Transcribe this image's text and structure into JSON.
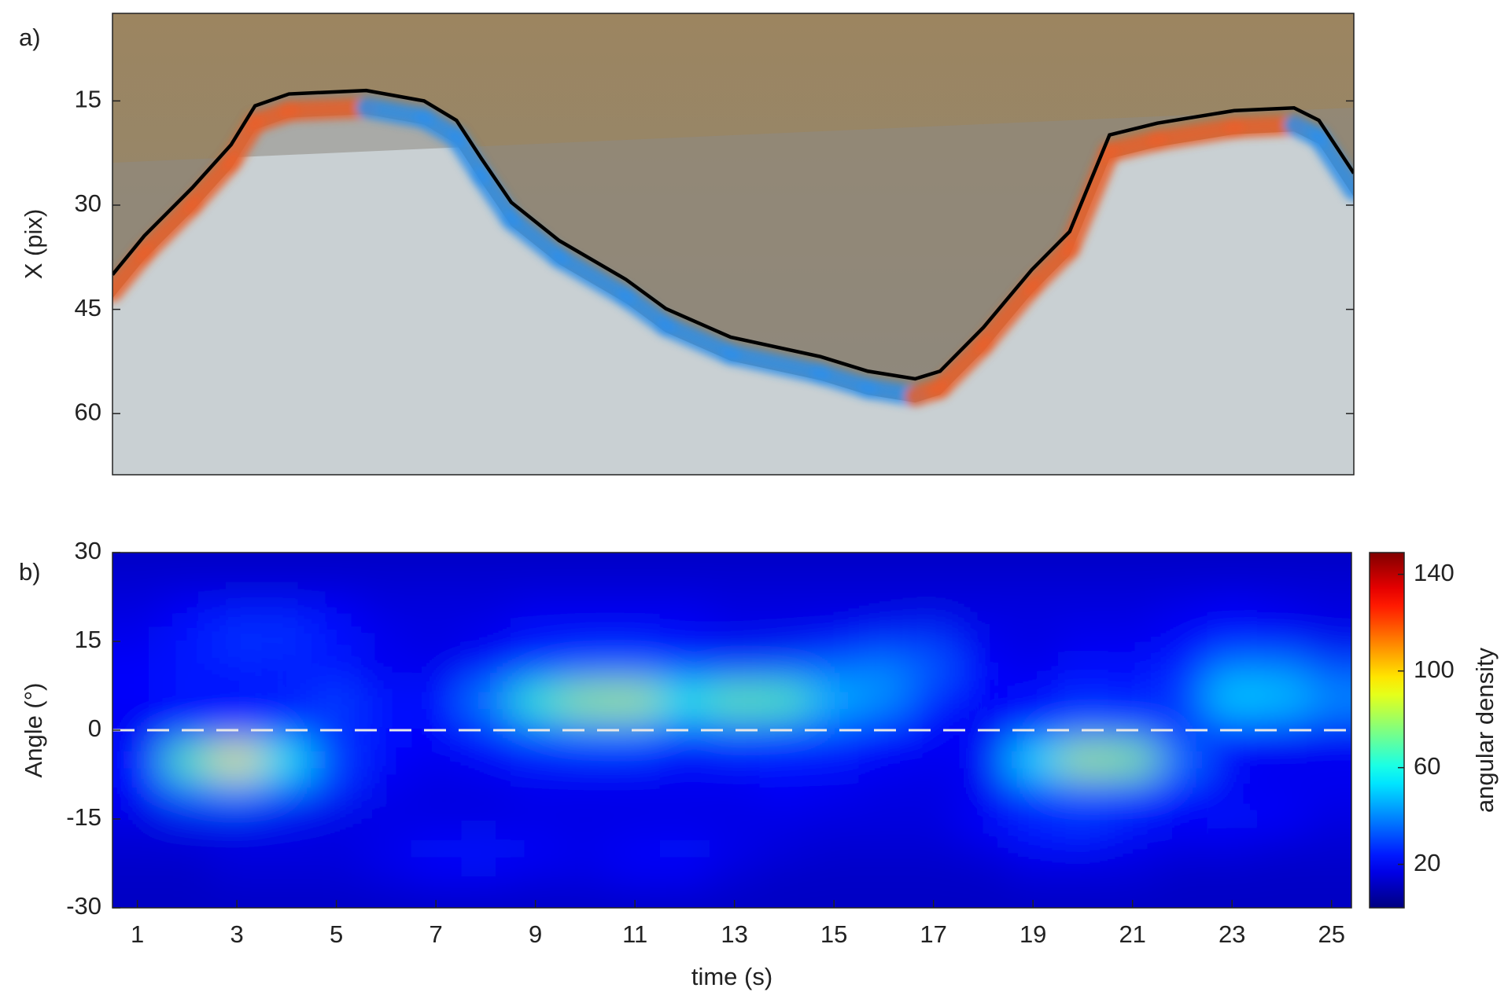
{
  "chart_data": [
    {
      "type": "line",
      "label": "a)",
      "ylabel": "X (pix)",
      "xlim": [
        0.5,
        25.4
      ],
      "ylim": [
        2.4,
        68.8
      ],
      "y_inverted": true,
      "yticks": [
        15,
        30,
        45,
        60
      ],
      "series": [
        {
          "color": "#000000",
          "x": [
            0.5,
            1.14,
            2.1,
            2.88,
            3.36,
            4.04,
            5.59,
            6.75,
            7.4,
            7.9,
            8.5,
            9.46,
            10.8,
            11.6,
            12.9,
            14.7,
            15.65,
            16.6,
            17.1,
            17.97,
            18.94,
            19.7,
            20.5,
            21.46,
            23.0,
            24.2,
            24.7,
            25.4
          ],
          "values": [
            40,
            34.4,
            27.5,
            21.3,
            15.7,
            14.0,
            13.5,
            15,
            17.8,
            23.3,
            29.6,
            35.1,
            40.7,
            44.9,
            49.0,
            51.8,
            53.9,
            55,
            53.9,
            47.6,
            39.3,
            33.8,
            19.9,
            18.2,
            16.4,
            16.0,
            17.8,
            25.4
          ]
        }
      ]
    },
    {
      "type": "heatmap",
      "label": "b)",
      "xlabel": "time (s)",
      "ylabel": "Angle (°)",
      "colorbar_label": "angular density",
      "xlim": [
        0.5,
        25.4
      ],
      "ylim": [
        -30,
        30
      ],
      "clim": [
        2,
        149
      ],
      "xticks": [
        1,
        3,
        5,
        7,
        9,
        11,
        13,
        15,
        17,
        19,
        21,
        23,
        25
      ],
      "yticks": [
        -30,
        -15,
        0,
        15,
        30
      ],
      "cticks": [
        20,
        60,
        100,
        140
      ],
      "colormap": "jet",
      "reference_line": 0,
      "reference_color": "#e8e8e8",
      "x": [
        1,
        2,
        3,
        4,
        5,
        6,
        7,
        8,
        9,
        10,
        11,
        12,
        13,
        14,
        15,
        16,
        17,
        18,
        19,
        20,
        21,
        22,
        23,
        24,
        25
      ],
      "y": [
        30,
        25,
        20,
        15,
        10,
        5,
        0,
        -5,
        -10,
        -15,
        -20,
        -25,
        -30
      ],
      "z": [
        [
          12,
          12,
          12,
          12,
          12,
          12,
          12,
          12,
          12,
          12,
          12,
          12,
          12,
          12,
          12,
          12,
          12,
          12,
          12,
          12,
          12,
          12,
          12,
          12,
          12
        ],
        [
          14,
          14,
          14,
          14,
          14,
          14,
          14,
          14,
          14,
          14,
          14,
          14,
          14,
          14,
          14,
          14,
          14,
          14,
          14,
          14,
          14,
          14,
          14,
          14,
          14
        ],
        [
          16,
          20,
          24,
          24,
          20,
          16,
          16,
          16,
          18,
          18,
          18,
          18,
          16,
          16,
          16,
          16,
          16,
          16,
          16,
          16,
          16,
          18,
          20,
          18,
          16
        ],
        [
          18,
          24,
          28,
          28,
          24,
          18,
          16,
          18,
          22,
          22,
          22,
          20,
          18,
          18,
          20,
          26,
          28,
          18,
          16,
          18,
          18,
          20,
          22,
          20,
          18
        ],
        [
          20,
          24,
          24,
          22,
          22,
          18,
          18,
          22,
          30,
          34,
          34,
          30,
          30,
          32,
          36,
          40,
          34,
          20,
          18,
          22,
          22,
          26,
          40,
          40,
          32
        ],
        [
          20,
          22,
          22,
          26,
          30,
          24,
          22,
          40,
          65,
          80,
          82,
          60,
          72,
          70,
          48,
          42,
          26,
          20,
          22,
          26,
          24,
          30,
          52,
          50,
          42
        ],
        [
          18,
          24,
          28,
          26,
          26,
          22,
          20,
          26,
          34,
          38,
          38,
          30,
          34,
          32,
          30,
          24,
          20,
          18,
          24,
          34,
          32,
          24,
          24,
          22,
          20
        ],
        [
          22,
          70,
          92,
          60,
          30,
          20,
          18,
          20,
          22,
          22,
          22,
          20,
          20,
          22,
          22,
          20,
          18,
          20,
          55,
          82,
          78,
          38,
          20,
          18,
          18
        ],
        [
          20,
          36,
          40,
          32,
          26,
          18,
          16,
          16,
          18,
          18,
          18,
          18,
          18,
          20,
          18,
          16,
          16,
          18,
          28,
          32,
          30,
          22,
          18,
          18,
          18
        ],
        [
          16,
          18,
          18,
          18,
          16,
          16,
          16,
          16,
          16,
          16,
          16,
          16,
          16,
          16,
          16,
          16,
          16,
          20,
          26,
          28,
          24,
          20,
          22,
          20,
          16
        ],
        [
          14,
          14,
          16,
          16,
          16,
          18,
          22,
          24,
          20,
          18,
          20,
          22,
          18,
          16,
          14,
          14,
          14,
          16,
          20,
          20,
          18,
          16,
          16,
          14,
          14
        ],
        [
          12,
          12,
          14,
          14,
          14,
          16,
          18,
          18,
          16,
          16,
          18,
          18,
          14,
          12,
          12,
          12,
          12,
          12,
          14,
          14,
          14,
          12,
          12,
          12,
          12
        ],
        [
          12,
          12,
          12,
          12,
          12,
          12,
          12,
          12,
          12,
          12,
          12,
          12,
          12,
          12,
          12,
          12,
          12,
          12,
          12,
          12,
          12,
          12,
          12,
          12,
          12
        ]
      ]
    }
  ]
}
